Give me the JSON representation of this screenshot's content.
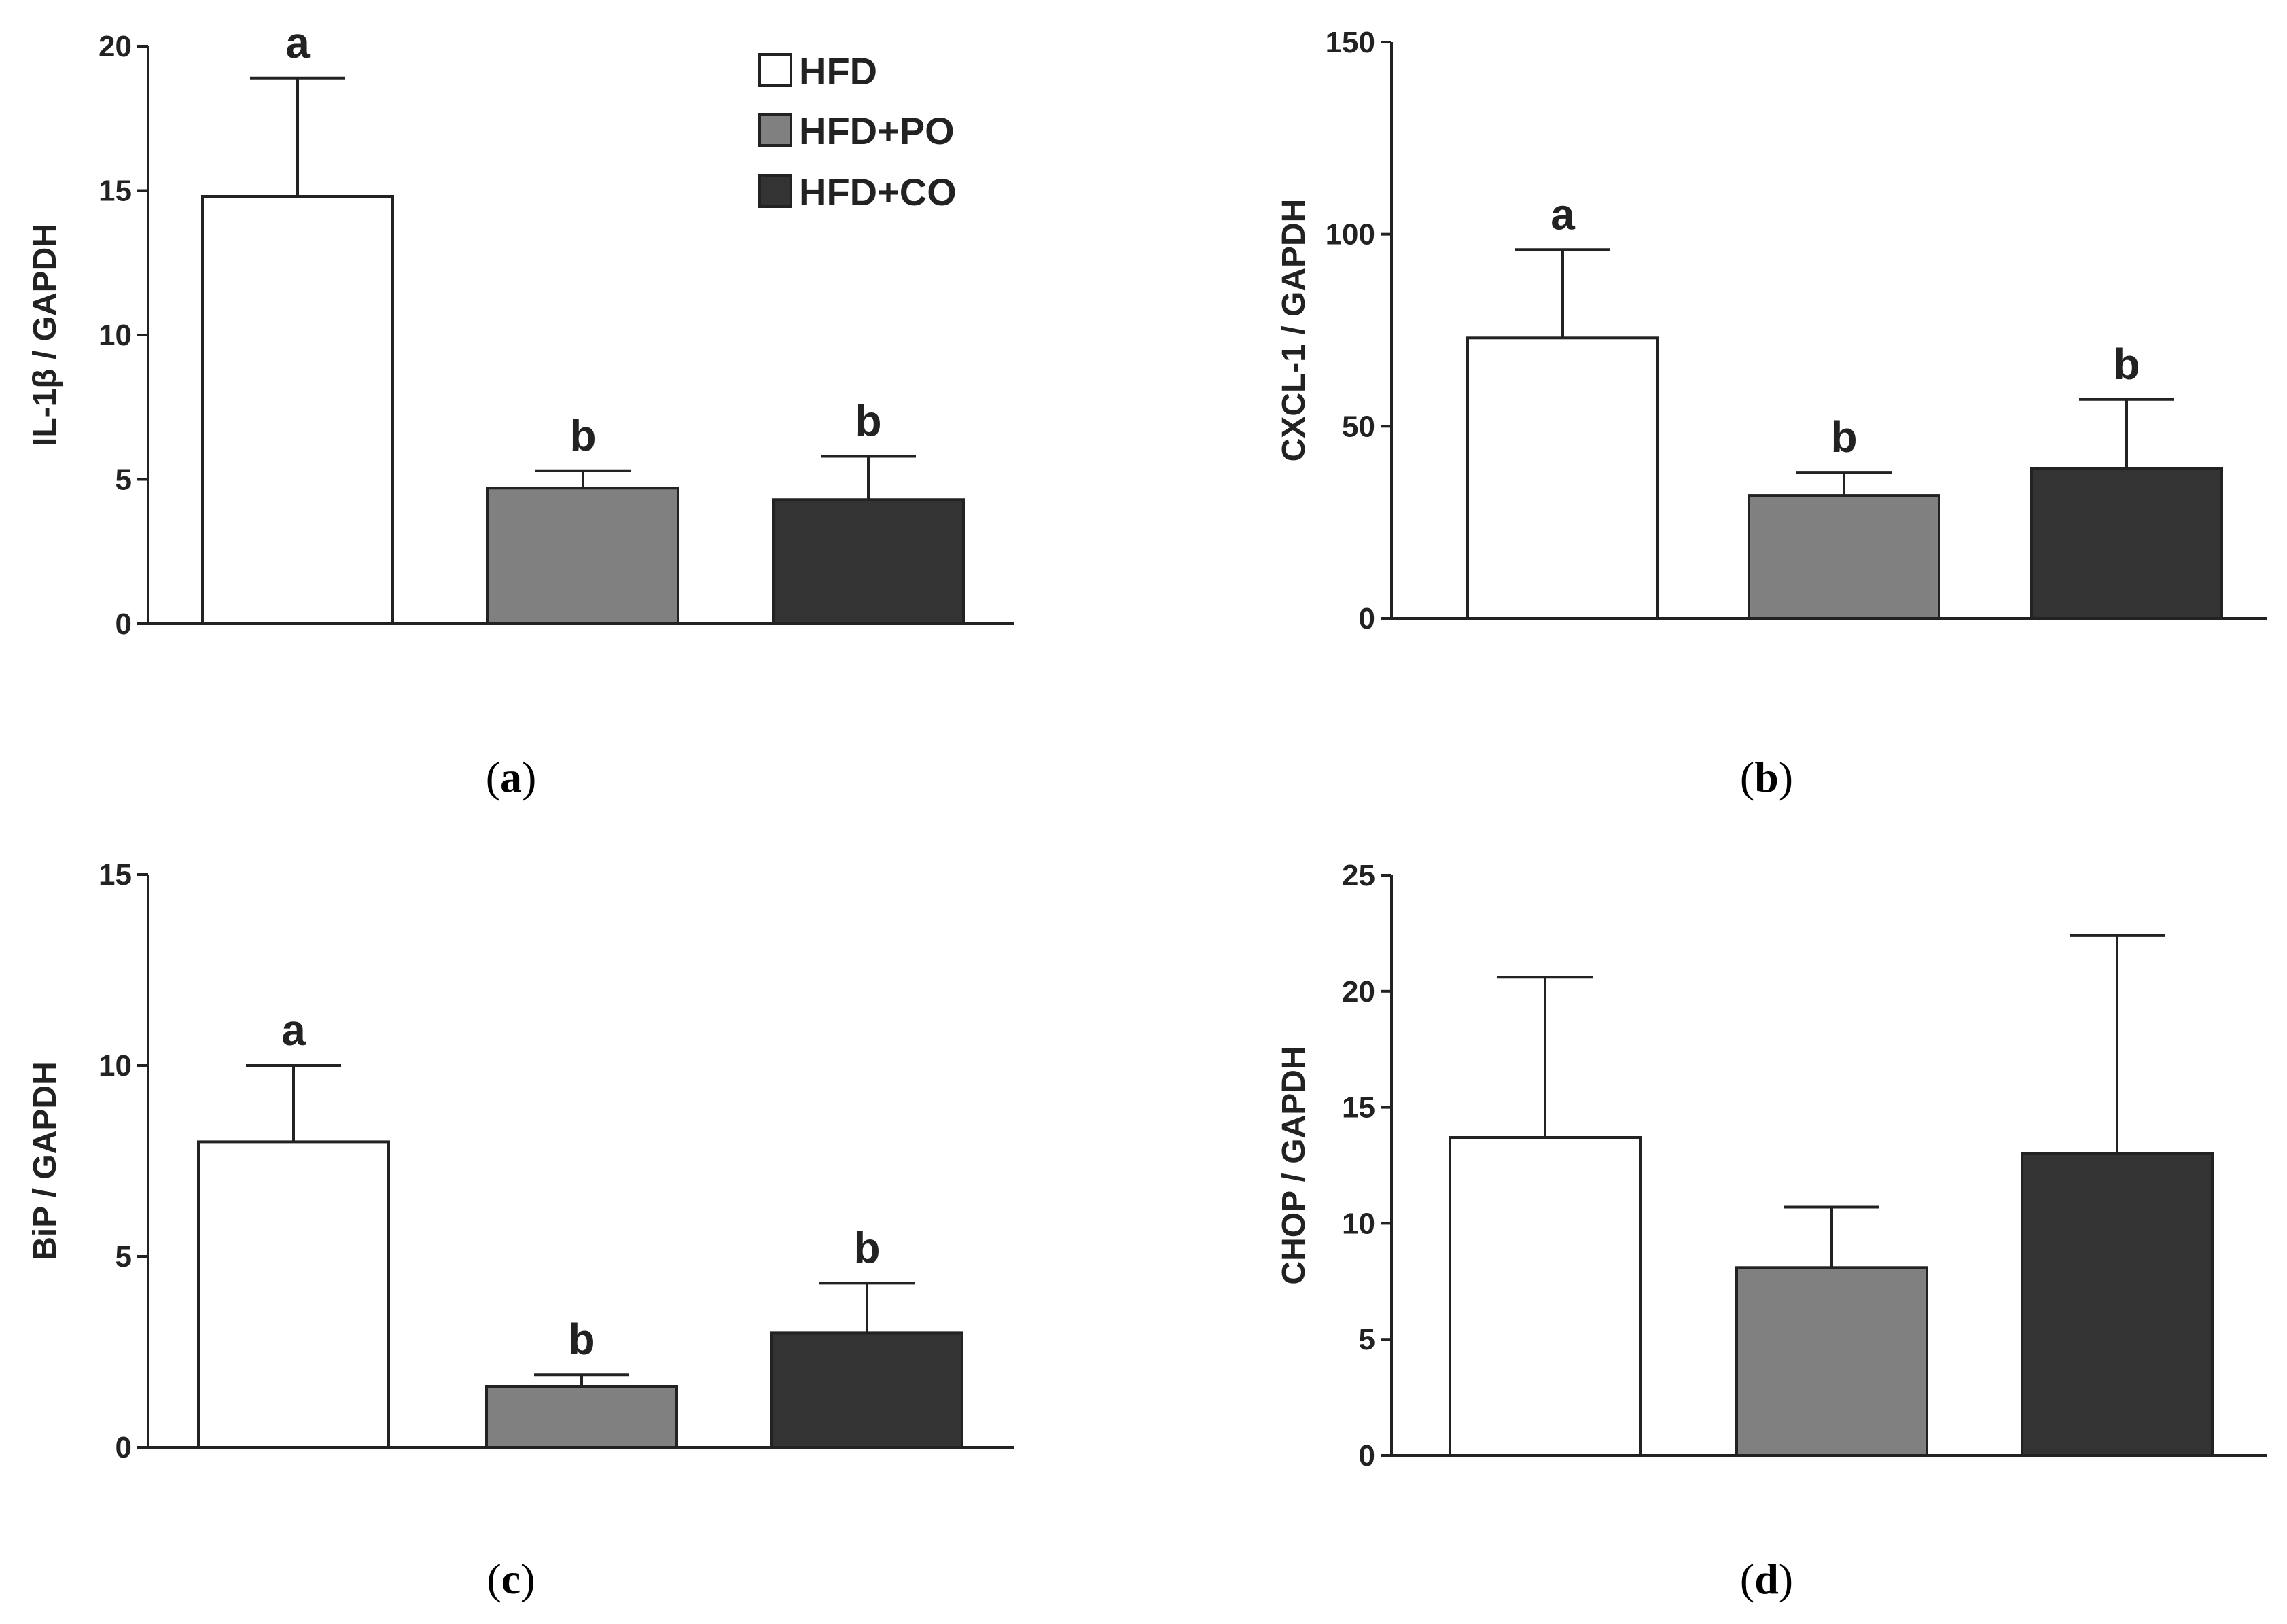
{
  "colors": {
    "HFD": "#ffffff",
    "HFD+PO": "#808080",
    "HFD+CO": "#333333",
    "axis": "#222222"
  },
  "legend": {
    "position": "top-right of panel (a)",
    "entries": [
      {
        "label": "HFD"
      },
      {
        "label": "HFD+PO"
      },
      {
        "label": "HFD+CO"
      }
    ]
  },
  "chart_data": [
    {
      "type": "bar",
      "panel": "a",
      "caption_letter": "a",
      "ylabel": "IL-1β / GAPDH",
      "categories": [
        "HFD",
        "HFD+PO",
        "HFD+CO"
      ],
      "values": [
        14.8,
        4.7,
        4.3
      ],
      "errors": [
        4.1,
        0.6,
        1.5
      ],
      "significance": [
        "a",
        "b",
        "b"
      ],
      "ylim": [
        0,
        20
      ],
      "yticks": [
        0,
        5,
        10,
        15,
        20
      ]
    },
    {
      "type": "bar",
      "panel": "b",
      "caption_letter": "b",
      "ylabel": "CXCL-1 / GAPDH",
      "categories": [
        "HFD",
        "HFD+PO",
        "HFD+CO"
      ],
      "values": [
        73,
        32,
        39
      ],
      "errors": [
        23,
        6,
        18
      ],
      "significance": [
        "a",
        "b",
        "b"
      ],
      "ylim": [
        0,
        150
      ],
      "yticks": [
        0,
        50,
        100,
        150
      ]
    },
    {
      "type": "bar",
      "panel": "c",
      "caption_letter": "c",
      "ylabel": "BiP / GAPDH",
      "categories": [
        "HFD",
        "HFD+PO",
        "HFD+CO"
      ],
      "values": [
        8.0,
        1.6,
        3.0
      ],
      "errors": [
        2.0,
        0.3,
        1.3
      ],
      "significance": [
        "a",
        "b",
        "b"
      ],
      "ylim": [
        0,
        15
      ],
      "yticks": [
        0,
        5,
        10,
        15
      ]
    },
    {
      "type": "bar",
      "panel": "d",
      "caption_letter": "d",
      "ylabel": "CHOP / GAPDH",
      "categories": [
        "HFD",
        "HFD+PO",
        "HFD+CO"
      ],
      "values": [
        13.7,
        8.1,
        13.0
      ],
      "errors": [
        6.9,
        2.6,
        9.4
      ],
      "significance": [
        "",
        "",
        ""
      ],
      "ylim": [
        0,
        25
      ],
      "yticks": [
        0,
        5,
        10,
        15,
        20,
        25
      ]
    }
  ]
}
